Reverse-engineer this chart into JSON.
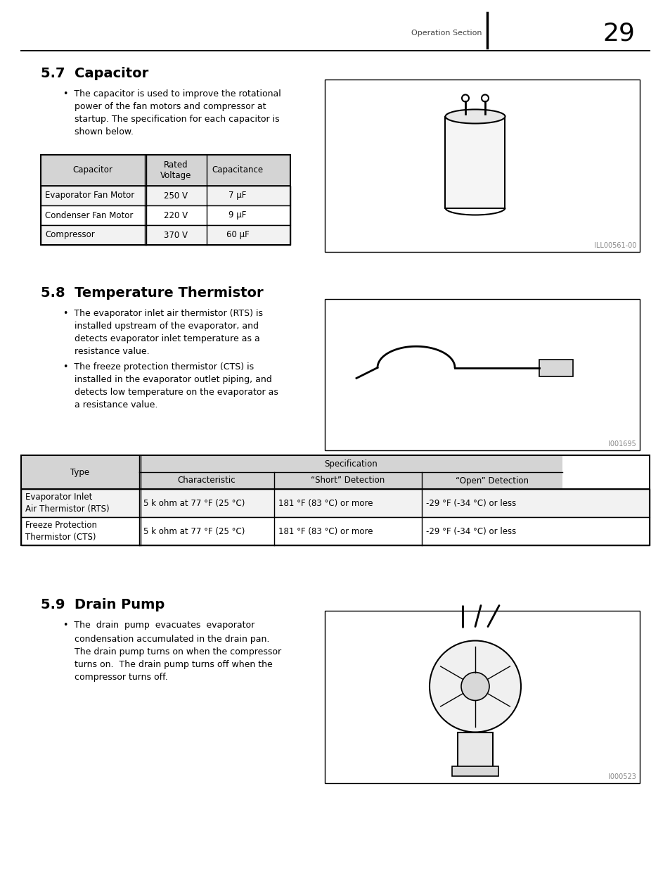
{
  "page_number": "29",
  "header_text": "Operation Section",
  "section_57_title": "5.7  Capacitor",
  "cap_table_headers": [
    "Capacitor",
    "Rated\nVoltage",
    "Capacitance"
  ],
  "cap_table_rows": [
    [
      "Evaporator Fan Motor",
      "250 V",
      "7 μF"
    ],
    [
      "Condenser Fan Motor",
      "220 V",
      "9 μF"
    ],
    [
      "Compressor",
      "370 V",
      "60 μF"
    ]
  ],
  "section_58_title": "5.8  Temperature Thermistor",
  "therm_table_rows": [
    [
      "Evaporator Inlet\nAir Thermistor (RTS)",
      "5 k ohm at 77 °F (25 °C)",
      "181 °F (83 °C) or more",
      "-29 °F (-34 °C) or less"
    ],
    [
      "Freeze Protection\nThermistor (CTS)",
      "5 k ohm at 77 °F (25 °C)",
      "181 °F (83 °C) or more",
      "-29 °F (-34 °C) or less"
    ]
  ],
  "section_59_title": "5.9  Drain Pump",
  "bg_color": "#ffffff",
  "table_header_bg": "#d4d4d4",
  "illno_57": "ILL00561-00",
  "illno_58": "I001695",
  "illno_59": "I000523"
}
